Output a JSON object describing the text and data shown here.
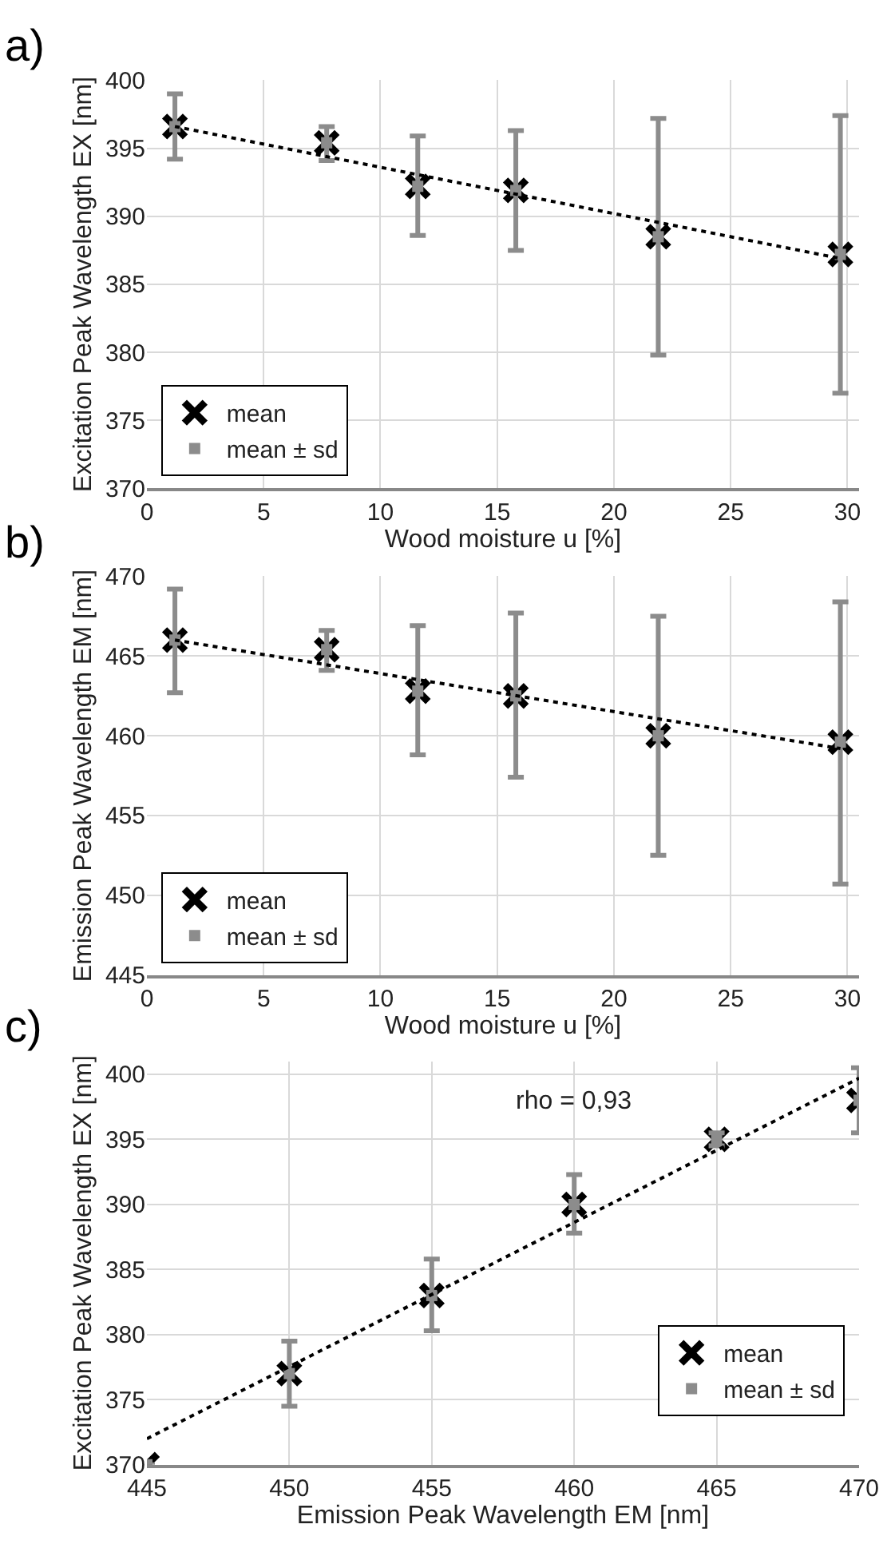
{
  "chart_data": [
    {
      "type": "scatter",
      "annotations": [
        "a)"
      ],
      "xlabel": "Wood moisture u [%]",
      "ylabel": "Excitation Peak Wavelength EX [nm]",
      "xlim": [
        0,
        30.5
      ],
      "xticks": [
        0,
        5,
        10,
        15,
        20,
        25,
        30
      ],
      "ylim": [
        370,
        400
      ],
      "yticks": [
        370,
        375,
        380,
        385,
        390,
        395,
        400
      ],
      "grid": true,
      "legend": "bottom left",
      "series": [
        {
          "name": "mean",
          "color": "#000000",
          "marker": "cross",
          "x": [
            1.2,
            7.7,
            11.6,
            15.8,
            21.9,
            29.7
          ],
          "values": [
            396.6,
            395.4,
            392.2,
            391.9,
            388.5,
            387.2
          ]
        },
        {
          "name": "mean ± sd",
          "color": "#8c8c8c",
          "marker": "square",
          "x": [
            1.2,
            7.7,
            11.6,
            15.8,
            21.9,
            29.7
          ],
          "values": [
            396.6,
            395.4,
            392.2,
            391.9,
            388.5,
            387.2
          ],
          "errors": [
            [
              394.2,
              399.0
            ],
            [
              394.1,
              396.6
            ],
            [
              388.6,
              395.9
            ],
            [
              387.5,
              396.3
            ],
            [
              379.8,
              397.2
            ],
            [
              377.0,
              397.4
            ]
          ]
        },
        {
          "type": "line",
          "color": "#000000",
          "line_style": "dotted",
          "marker": "none",
          "x": [
            1.2,
            29.7
          ],
          "values": [
            396.6,
            386.9
          ]
        }
      ]
    },
    {
      "type": "scatter",
      "annotations": [
        "b)"
      ],
      "xlabel": "Wood moisture u [%]",
      "ylabel": "Emission Peak Wavelength EM [nm]",
      "xlim": [
        0,
        30.5
      ],
      "xticks": [
        0,
        5,
        10,
        15,
        20,
        25,
        30
      ],
      "ylim": [
        445,
        470
      ],
      "yticks": [
        445,
        450,
        455,
        460,
        465,
        470
      ],
      "grid": true,
      "legend": "bottom left",
      "series": [
        {
          "name": "mean",
          "color": "#000000",
          "marker": "cross",
          "x": [
            1.2,
            7.7,
            11.6,
            15.8,
            21.9,
            29.7
          ],
          "values": [
            466.0,
            465.4,
            462.8,
            462.5,
            460.0,
            459.6
          ]
        },
        {
          "name": "mean ± sd",
          "color": "#8c8c8c",
          "marker": "square",
          "x": [
            1.2,
            7.7,
            11.6,
            15.8,
            21.9,
            29.7
          ],
          "values": [
            466.0,
            465.4,
            462.8,
            462.5,
            460.0,
            459.6
          ],
          "errors": [
            [
              462.7,
              469.2
            ],
            [
              464.1,
              466.6
            ],
            [
              458.8,
              466.9
            ],
            [
              457.4,
              467.7
            ],
            [
              452.5,
              467.5
            ],
            [
              450.7,
              468.4
            ]
          ]
        },
        {
          "type": "line",
          "color": "#000000",
          "line_style": "dotted",
          "marker": "none",
          "x": [
            1.2,
            29.7
          ],
          "values": [
            466.0,
            459.2
          ]
        }
      ]
    },
    {
      "type": "scatter",
      "annotations": [
        "c)",
        "rho = 0,93"
      ],
      "xlabel": "Emission Peak Wavelength EM [nm]",
      "ylabel": "Excitation Peak Wavelength EX [nm]",
      "xlim": [
        445,
        470
      ],
      "xticks": [
        445,
        450,
        455,
        460,
        465,
        470
      ],
      "ylim": [
        370,
        401
      ],
      "yticks": [
        370,
        375,
        380,
        385,
        390,
        395,
        400
      ],
      "grid": true,
      "legend": "bottom right",
      "series": [
        {
          "name": "mean",
          "color": "#000000",
          "marker": "cross",
          "x": [
            445,
            450,
            455,
            460,
            465,
            470
          ],
          "values": [
            370,
            377,
            383,
            390,
            395,
            398
          ]
        },
        {
          "name": "mean ± sd",
          "color": "#8c8c8c",
          "marker": "square",
          "x": [
            445,
            450,
            455,
            460,
            465,
            470
          ],
          "values": [
            370,
            377,
            383,
            390,
            395,
            398
          ],
          "errors": [
            null,
            [
              374.5,
              379.5
            ],
            [
              380.3,
              385.8
            ],
            [
              387.8,
              392.3
            ],
            [
              394.5,
              395.5
            ],
            [
              395.5,
              400.5
            ]
          ]
        },
        {
          "type": "line",
          "color": "#000000",
          "line_style": "dotted",
          "marker": "none",
          "x": [
            445,
            470
          ],
          "values": [
            372,
            399.7
          ]
        }
      ]
    }
  ]
}
